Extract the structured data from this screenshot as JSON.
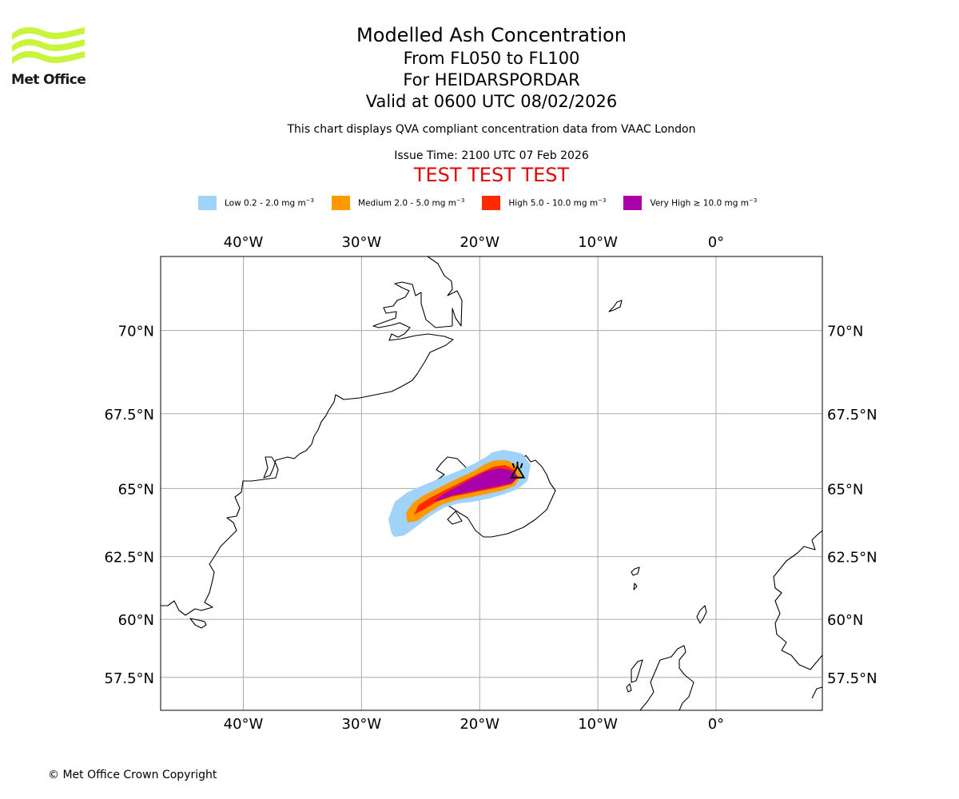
{
  "brand": {
    "name": "Met Office",
    "logo_color": "#c8f53c",
    "copyright": "© Met Office Crown Copyright"
  },
  "header": {
    "title": "Modelled Ash Concentration",
    "flight_levels": "From FL050 to FL100",
    "volcano": "For HEIDARSPORDAR",
    "valid_time": "Valid at 0600 UTC 08/02/2026",
    "description": "This chart displays QVA compliant concentration data from VAAC London",
    "issue_time": "Issue Time: 2100 UTC 07 Feb 2026",
    "test_banner": "TEST TEST TEST"
  },
  "legend": [
    {
      "label": "Low 0.2 - 2.0 mg m",
      "unit_exp": "−3",
      "color": "#a0d2fa"
    },
    {
      "label": "Medium 2.0 - 5.0 mg m",
      "unit_exp": "−3",
      "color": "#ff9900"
    },
    {
      "label": "High 5.0 - 10.0 mg m",
      "unit_exp": "−3",
      "color": "#ff2a00"
    },
    {
      "label": "Very High ≥ 10.0 mg m",
      "unit_exp": "−3",
      "color": "#aa00aa"
    }
  ],
  "map": {
    "lon_range": [
      -47,
      9
    ],
    "lat_range": [
      56,
      72
    ],
    "lon_ticks": [
      {
        "value": -40,
        "label": "40°W"
      },
      {
        "value": -30,
        "label": "30°W"
      },
      {
        "value": -20,
        "label": "20°W"
      },
      {
        "value": -10,
        "label": "10°W"
      },
      {
        "value": 0,
        "label": "0°"
      }
    ],
    "lat_ticks": [
      {
        "value": 70,
        "label": "70°N"
      },
      {
        "value": 67.5,
        "label": "67.5°N"
      },
      {
        "value": 65,
        "label": "65°N"
      },
      {
        "value": 62.5,
        "label": "62.5°N"
      },
      {
        "value": 60,
        "label": "60°N"
      },
      {
        "value": 57.5,
        "label": "57.5°N"
      }
    ],
    "volcano_marker": {
      "name": "volcano",
      "lon": -16.8,
      "lat": 65.6
    },
    "gridline_color": "#aaaaaa"
  }
}
